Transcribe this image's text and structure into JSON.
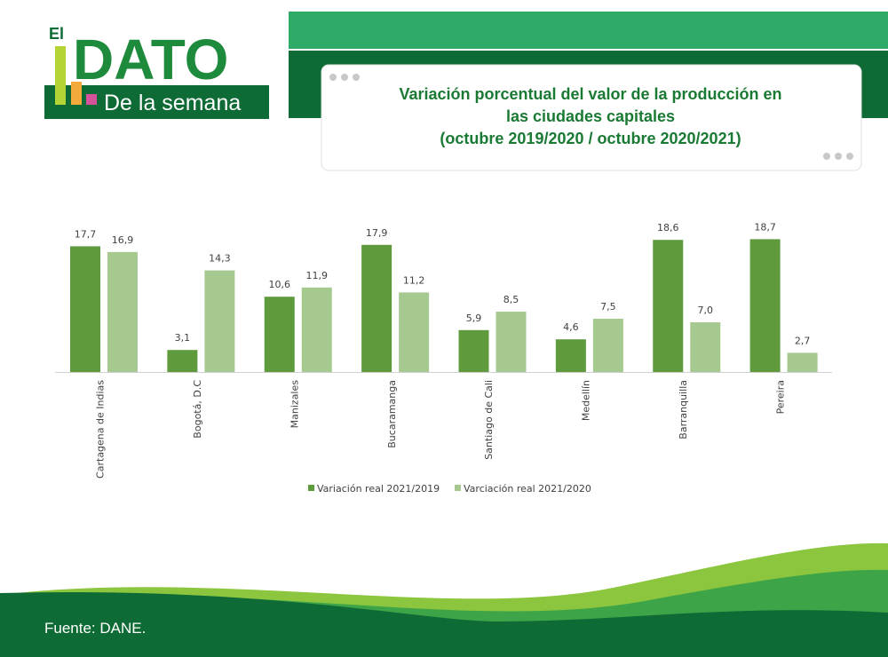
{
  "logo": {
    "small": "El",
    "big": "DATO",
    "tagline": "De la semana"
  },
  "chart_data": {
    "type": "bar",
    "title": [
      "Variación porcentual del valor de la producción en",
      "las ciudades capitales",
      "(octubre 2019/2020 / octubre 2020/2021)"
    ],
    "categories": [
      "Cartagena de Indias",
      "Bogotá, D.C",
      "Manizales",
      "Bucaramanga",
      "Santiago de Cali",
      "Medellín",
      "Barranquilla",
      "Pereira"
    ],
    "series": [
      {
        "name": "Variación real 2021/2019",
        "color": "#5f9b3d",
        "values": [
          17.7,
          3.1,
          10.6,
          17.9,
          5.9,
          4.6,
          18.6,
          18.7
        ],
        "value_labels": [
          "17,7",
          "3,1",
          "10,6",
          "17,9",
          "5,9",
          "4,6",
          "18,6",
          "18,7"
        ]
      },
      {
        "name": "Varciación real 2021/2020",
        "color": "#a5c98f",
        "values": [
          16.9,
          14.3,
          11.9,
          11.2,
          8.5,
          7.5,
          7.0,
          2.7
        ],
        "value_labels": [
          "16,9",
          "14,3",
          "11,9",
          "11,2",
          "8,5",
          "7,5",
          "7,0",
          "2,7"
        ]
      }
    ],
    "legend": "bottom"
  },
  "source": "Fuente: DANE."
}
